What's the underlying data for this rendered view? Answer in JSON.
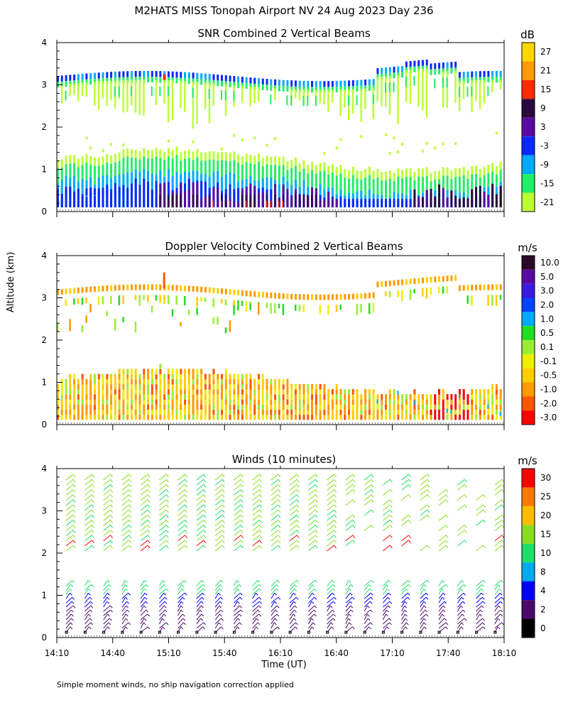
{
  "title": "M2HATS MISS Tonopah Airport NV  24 Aug 2023 Day 236",
  "y_axis_label": "Altitude (km)",
  "x_axis_label": "Time (UT)",
  "footnote": "Simple moment winds, no ship navigation correction applied",
  "chart_data": [
    {
      "type": "heatmap",
      "title": "SNR Combined 2 Vertical Beams",
      "ylabel": "Altitude (km)",
      "ylim": [
        0,
        4
      ],
      "yticks": [
        "0",
        "1",
        "2",
        "3",
        "4"
      ],
      "xlim_minutes_since_1410": [
        0,
        240
      ],
      "colorbar_unit": "dB",
      "colorbar_labels": [
        "27",
        "21",
        "15",
        "9",
        "3",
        "-3",
        "-9",
        "-15",
        "-21"
      ],
      "colorbar_colors": [
        "#ffd700",
        "#ff9900",
        "#ff2a00",
        "#2a0a3c",
        "#5a0aa0",
        "#0a28ff",
        "#00aaff",
        "#22ee66",
        "#bbff33"
      ],
      "features": [
        {
          "name": "upper cloud layer top",
          "altitude_km": [
            3.0,
            3.4
          ],
          "snr_db": [
            -9,
            -3
          ]
        },
        {
          "name": "upper cloud layer",
          "altitude_km": [
            2.2,
            3.1
          ],
          "snr_db": [
            -21,
            -15
          ]
        },
        {
          "name": "boundary layer",
          "altitude_km": [
            0.1,
            1.2
          ],
          "snr_db": [
            -15,
            15
          ]
        }
      ]
    },
    {
      "type": "heatmap",
      "title": "Doppler Velocity Combined 2 Vertical Beams",
      "ylabel": "Altitude (km)",
      "ylim": [
        0,
        4
      ],
      "yticks": [
        "0",
        "1",
        "2",
        "3",
        "4"
      ],
      "xlim_minutes_since_1410": [
        0,
        240
      ],
      "colorbar_unit": "m/s",
      "colorbar_labels": [
        "10.0",
        "5.0",
        "3.0",
        "2.0",
        "1.0",
        "0.5",
        "0.1",
        "-0.1",
        "-0.5",
        "-1.0",
        "-2.0",
        "-3.0"
      ],
      "colorbar_colors": [
        "#2a0a2a",
        "#5a0aa0",
        "#3a1adc",
        "#0044ff",
        "#00aaff",
        "#22dd22",
        "#99ee33",
        "#eeee00",
        "#ffcc00",
        "#ff9900",
        "#ff5500",
        "#ff0000"
      ],
      "features": [
        {
          "name": "upper cloud layer",
          "altitude_km": [
            2.2,
            3.4
          ],
          "velocity_ms": [
            -1.0,
            0.5
          ]
        },
        {
          "name": "boundary layer",
          "altitude_km": [
            0.1,
            1.2
          ],
          "velocity_ms": [
            -3.0,
            0.5
          ]
        }
      ]
    },
    {
      "type": "scatter",
      "title": "Winds (10 minutes)",
      "ylabel": "Altitude (km)",
      "ylim": [
        0,
        4
      ],
      "yticks": [
        "0",
        "1",
        "2",
        "3",
        "4"
      ],
      "xlabel": "Time (UT)",
      "xticks": [
        "14:10",
        "14:40",
        "15:10",
        "15:40",
        "16:10",
        "16:40",
        "17:10",
        "17:40",
        "18:10"
      ],
      "xlim_minutes_since_1410": [
        0,
        240
      ],
      "profile_times_min": [
        5,
        15,
        25,
        35,
        45,
        55,
        65,
        75,
        85,
        95,
        105,
        115,
        125,
        135,
        145,
        155,
        165,
        175,
        185,
        195,
        205,
        215,
        225,
        235
      ],
      "colorbar_unit": "m/s",
      "colorbar_labels": [
        "30",
        "25",
        "20",
        "15",
        "10",
        "8",
        "4",
        "2",
        "0"
      ],
      "colorbar_colors": [
        "#ff0000",
        "#ff7700",
        "#ffbb00",
        "#88dd22",
        "#22dd66",
        "#00aaee",
        "#0000ff",
        "#4a0a6a",
        "#000000"
      ],
      "features": [
        {
          "name": "upper wind barbs",
          "altitude_km": [
            2.0,
            3.8
          ],
          "speed_ms": [
            10,
            25
          ]
        },
        {
          "name": "lower wind barbs",
          "altitude_km": [
            0.1,
            1.3
          ],
          "speed_ms": [
            2,
            10
          ]
        }
      ]
    }
  ]
}
